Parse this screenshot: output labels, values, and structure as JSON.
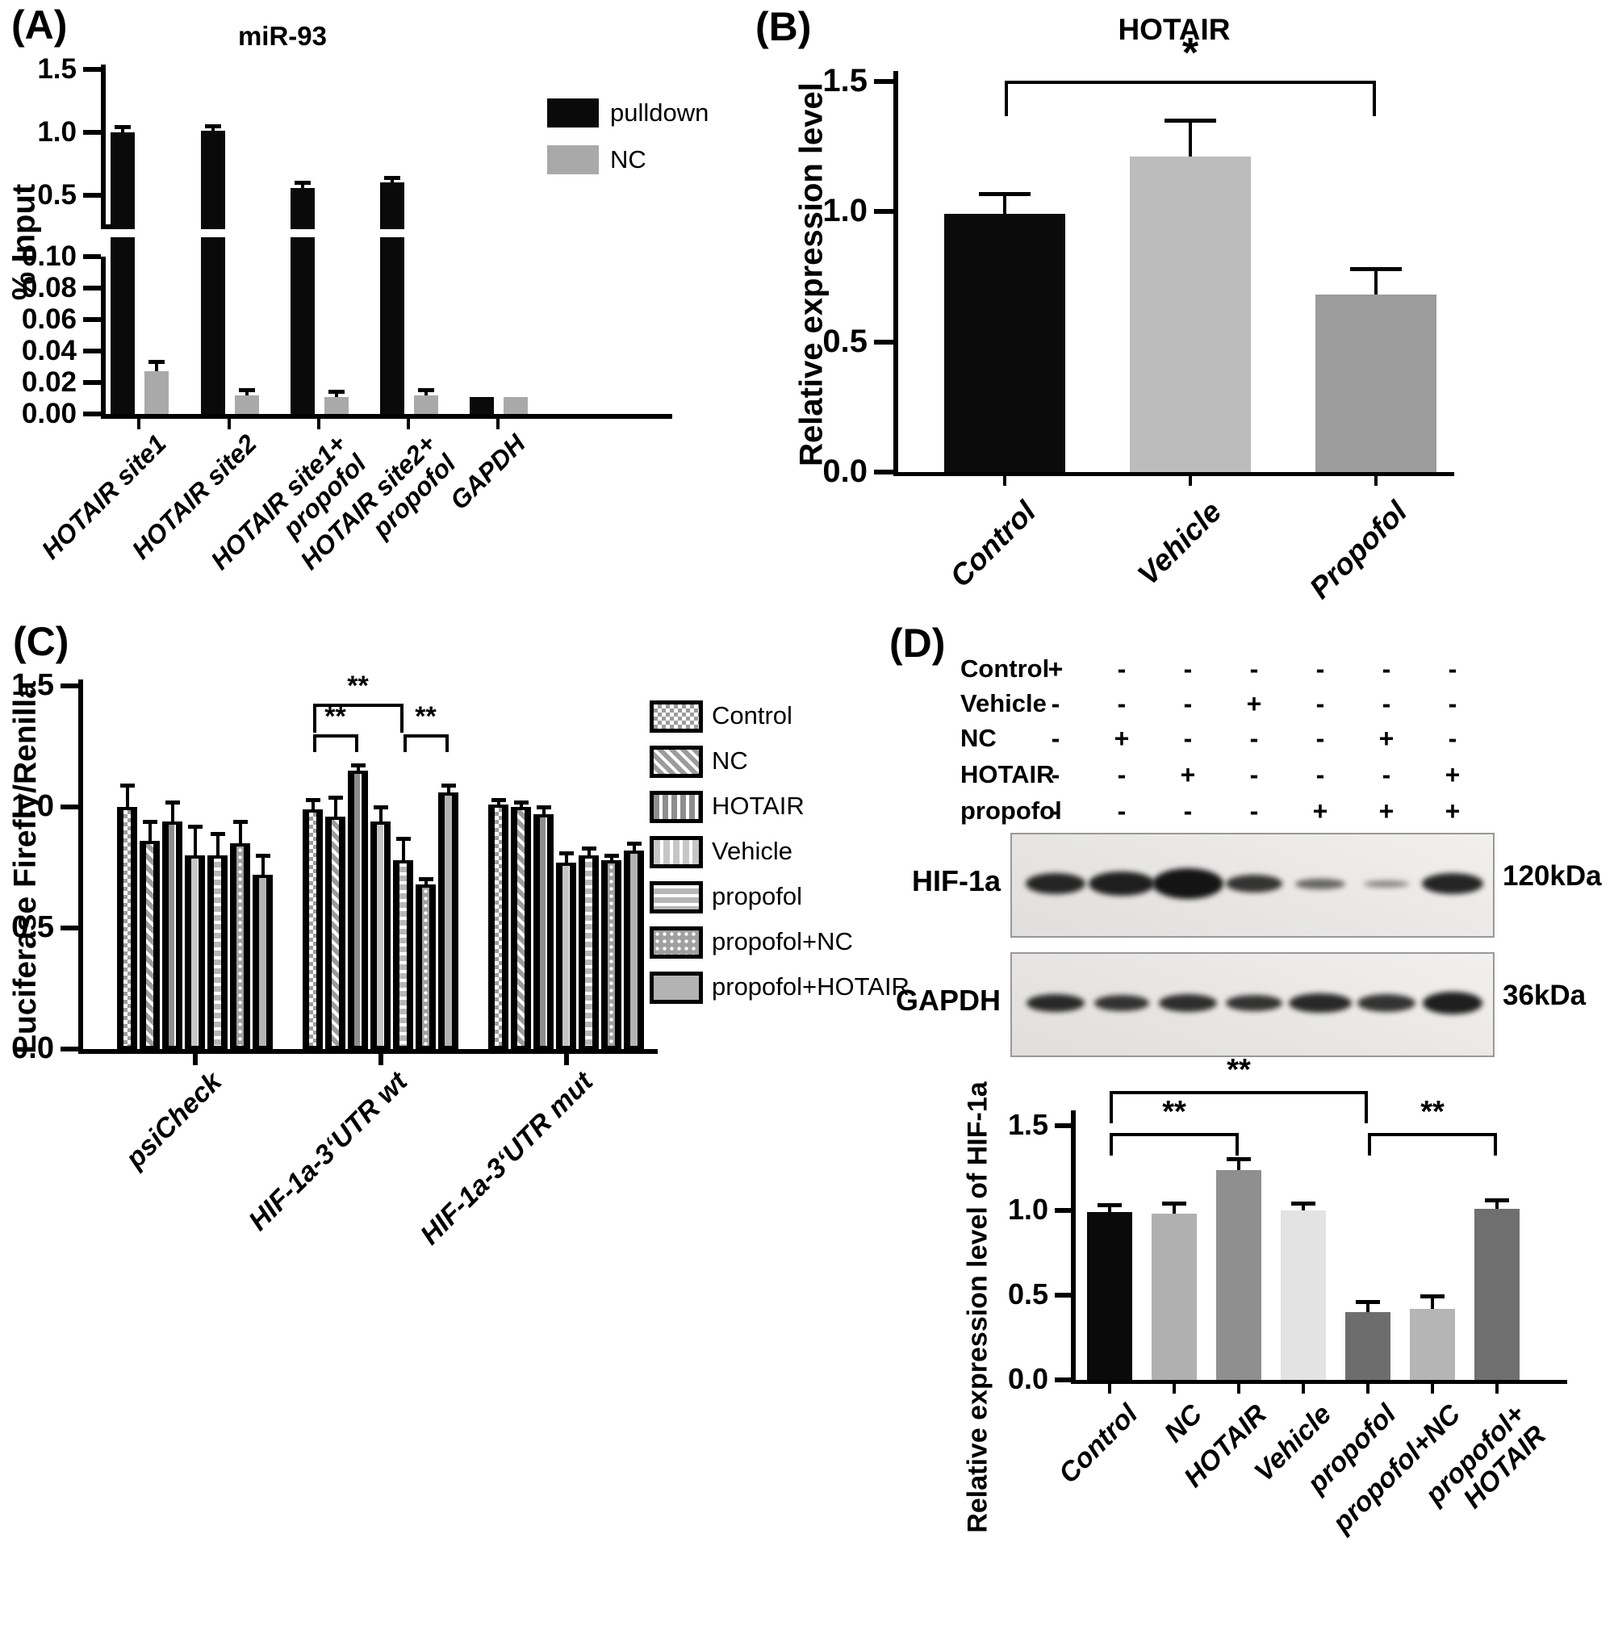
{
  "panel_labels": {
    "A": "(A)",
    "B": "(B)",
    "C": "(C)",
    "D": "(D)"
  },
  "chart_data": [
    {
      "id": "A",
      "type": "bar",
      "title": "miR-93",
      "ylabel": "% Input",
      "broken_axis": true,
      "upper_axis": {
        "range": [
          0.23,
          1.5
        ],
        "tick_values": [
          1.5,
          1.0,
          0.5
        ],
        "tick_labels": [
          "1.5",
          "1.0",
          "0.5"
        ]
      },
      "lower_axis": {
        "range": [
          0,
          0.1
        ],
        "tick_values": [
          0.1,
          0.08,
          0.06,
          0.04,
          0.02,
          0.0
        ],
        "tick_labels": [
          "0.10",
          "0.08",
          "0.06",
          "0.04",
          "0.02",
          "0.00"
        ]
      },
      "categories": [
        "HOTAIR site1",
        "HOTAIR site2",
        "HOTAIR site1+\npropofol",
        "HOTAIR site2+\npropofol",
        "GAPDH"
      ],
      "legend_position": "top-right",
      "legend": [
        {
          "label": "pulldown",
          "color": "#0a0a0a"
        },
        {
          "label": "NC",
          "color": "#a9a9a9"
        }
      ],
      "series": [
        {
          "name": "pulldown",
          "color": "#0a0a0a",
          "values": [
            1.0,
            1.01,
            0.56,
            0.6,
            0.011
          ],
          "errors": [
            0.025,
            0.02,
            0.02,
            0.02,
            0.001
          ]
        },
        {
          "name": "NC",
          "color": "#a9a9a9",
          "values": [
            0.027,
            0.012,
            0.011,
            0.012,
            0.011
          ],
          "errors": [
            0.005,
            0.002,
            0.002,
            0.002,
            0.001
          ]
        }
      ]
    },
    {
      "id": "B",
      "type": "bar",
      "title": "HOTAIR",
      "ylabel": "Relative expression level",
      "ylim": [
        0,
        1.5
      ],
      "yticks": {
        "values": [
          0.0,
          0.5,
          1.0,
          1.5
        ],
        "labels": [
          "0.0",
          "0.5",
          "1.0",
          "1.5"
        ]
      },
      "categories": [
        "Control",
        "Vehicle",
        "Propofol"
      ],
      "values": [
        0.99,
        1.21,
        0.68
      ],
      "errors": [
        0.07,
        0.13,
        0.09
      ],
      "colors": [
        "#0b0b0b",
        "#bcbcbd",
        "#9c9c9c"
      ],
      "significance": [
        {
          "from": 0,
          "to": 2,
          "label": "*",
          "level": "high"
        }
      ]
    },
    {
      "id": "C",
      "type": "grouped-bar",
      "title": "",
      "ylabel": "Luciferase Firefly/Renilla",
      "ylim": [
        0,
        1.5
      ],
      "yticks": {
        "values": [
          0.0,
          0.5,
          1.0,
          1.5
        ],
        "labels": [
          "0.0",
          "0.5",
          "1.0",
          "1.5"
        ]
      },
      "groups": [
        "psiCheck",
        "HIF-1a-3‘UTR wt",
        "HIF-1a-3‘UTR mut"
      ],
      "series_labels": [
        "Control",
        "NC",
        "HOTAIR",
        "Vehicle",
        "propofol",
        "propofol+NC",
        "propofol+HOTAIR"
      ],
      "patterns": [
        "checker",
        "diagonal",
        "vdark",
        "vlight",
        "brick",
        "dots",
        "solid"
      ],
      "values": [
        [
          1.0,
          0.86,
          0.94,
          0.8,
          0.8,
          0.85,
          0.72
        ],
        [
          0.99,
          0.96,
          1.15,
          0.94,
          0.78,
          0.68,
          1.06
        ],
        [
          1.01,
          1.0,
          0.97,
          0.77,
          0.8,
          0.78,
          0.82
        ]
      ],
      "errors": [
        [
          0.08,
          0.07,
          0.07,
          0.11,
          0.08,
          0.08,
          0.07
        ],
        [
          0.03,
          0.07,
          0.015,
          0.05,
          0.08,
          0.015,
          0.02
        ],
        [
          0.01,
          0.01,
          0.02,
          0.03,
          0.02,
          0.01,
          0.02
        ]
      ],
      "significance": [
        {
          "group": 1,
          "from": 0,
          "to": 4,
          "label": "**",
          "level": "high"
        },
        {
          "group": 1,
          "from": 0,
          "to": 2,
          "label": "**",
          "level": "low"
        },
        {
          "group": 1,
          "from": 4,
          "to": 6,
          "label": "**",
          "level": "low"
        }
      ]
    },
    {
      "id": "D",
      "type": "bar",
      "title": "",
      "ylabel": "Relative expression level of HIF-1a",
      "ylim": [
        0,
        1.5
      ],
      "yticks": {
        "values": [
          0.0,
          0.5,
          1.0,
          1.5
        ],
        "labels": [
          "0.0",
          "0.5",
          "1.0",
          "1.5"
        ]
      },
      "categories": [
        "Control",
        "NC",
        "HOTAIR",
        "Vehicle",
        "propofol",
        "propofol+NC",
        "propofol+\nHOTAIR"
      ],
      "values": [
        0.99,
        0.98,
        1.24,
        1.0,
        0.4,
        0.42,
        1.01
      ],
      "errors": [
        0.03,
        0.05,
        0.05,
        0.03,
        0.05,
        0.06,
        0.04
      ],
      "colors": [
        "#0a0a0a",
        "#b0b0b0",
        "#8f8f8f",
        "#e3e3e3",
        "#6d6d6d",
        "#b5b5b5",
        "#6f6f6f"
      ],
      "significance": [
        {
          "from": 0,
          "to": 4,
          "label": "**",
          "level": "high"
        },
        {
          "from": 0,
          "to": 2,
          "label": "**",
          "level": "low"
        },
        {
          "from": 4,
          "to": 6,
          "label": "**",
          "level": "low"
        }
      ]
    }
  ],
  "western_blot": {
    "condition_matrix": {
      "rows": [
        "Control",
        "Vehicle",
        "NC",
        "HOTAIR",
        "propofol"
      ],
      "cells": [
        [
          "+",
          "-",
          "-",
          "-",
          "-",
          "-",
          "-"
        ],
        [
          "-",
          "-",
          "-",
          "+",
          "-",
          "-",
          "-"
        ],
        [
          "-",
          "+",
          "-",
          "-",
          "-",
          "+",
          "-"
        ],
        [
          "-",
          "-",
          "+",
          "-",
          "-",
          "-",
          "+"
        ],
        [
          "-",
          "-",
          "-",
          "-",
          "+",
          "+",
          "+"
        ]
      ]
    },
    "blots": [
      {
        "protein": "HIF-1a",
        "weight": "120kDa",
        "bands": [
          {
            "w": 74,
            "h": 26,
            "o": 0.92
          },
          {
            "w": 82,
            "h": 30,
            "o": 0.95
          },
          {
            "w": 88,
            "h": 38,
            "o": 1.0
          },
          {
            "w": 70,
            "h": 22,
            "o": 0.85
          },
          {
            "w": 62,
            "h": 13,
            "o": 0.62
          },
          {
            "w": 56,
            "h": 9,
            "o": 0.45
          },
          {
            "w": 76,
            "h": 26,
            "o": 0.92
          }
        ]
      },
      {
        "protein": "GAPDH",
        "weight": "36kDa",
        "bands": [
          {
            "w": 72,
            "h": 22,
            "o": 0.9
          },
          {
            "w": 68,
            "h": 20,
            "o": 0.85
          },
          {
            "w": 72,
            "h": 22,
            "o": 0.88
          },
          {
            "w": 70,
            "h": 20,
            "o": 0.85
          },
          {
            "w": 78,
            "h": 24,
            "o": 0.9
          },
          {
            "w": 72,
            "h": 22,
            "o": 0.85
          },
          {
            "w": 74,
            "h": 28,
            "o": 0.95
          }
        ]
      }
    ]
  }
}
